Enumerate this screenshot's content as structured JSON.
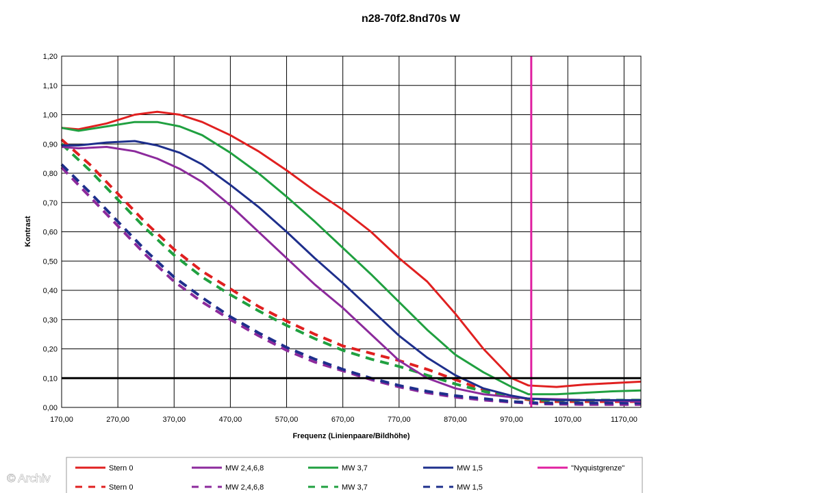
{
  "watermark": "© Archiv",
  "chart_data": {
    "type": "line",
    "title": "n28-70f2.8nd70s W",
    "xlabel": "Frequenz (Linienpaare/Bildhöhe)",
    "ylabel": "Kontrast",
    "xlim": [
      170,
      1200
    ],
    "ylim": [
      0,
      1.2
    ],
    "x_ticks": [
      170,
      270,
      370,
      470,
      570,
      670,
      770,
      870,
      970,
      1070,
      1170
    ],
    "x_tick_labels": [
      "170,00",
      "270,00",
      "370,00",
      "470,00",
      "570,00",
      "670,00",
      "770,00",
      "870,00",
      "970,00",
      "1070,00",
      "1170,00"
    ],
    "y_ticks": [
      0,
      0.1,
      0.2,
      0.3,
      0.4,
      0.5,
      0.6,
      0.7,
      0.8,
      0.9,
      1.0,
      1.1,
      1.2
    ],
    "y_tick_labels": [
      "0,00",
      "0,10",
      "0,20",
      "0,30",
      "0,40",
      "0,50",
      "0,60",
      "0,70",
      "0,80",
      "0,90",
      "1,00",
      "1,10",
      "1,20"
    ],
    "grid": true,
    "legend_position": "bottom",
    "reference_line": {
      "y": 0.1,
      "color": "#000000"
    },
    "series": [
      {
        "name": "Stern 0",
        "color": "#e02020",
        "style": "solid",
        "x": [
          170,
          200,
          250,
          300,
          340,
          380,
          420,
          470,
          520,
          570,
          620,
          670,
          720,
          770,
          820,
          870,
          920,
          970,
          1000,
          1050,
          1100,
          1150,
          1200
        ],
        "y": [
          0.955,
          0.95,
          0.97,
          1.0,
          1.01,
          1.0,
          0.975,
          0.93,
          0.875,
          0.81,
          0.74,
          0.675,
          0.6,
          0.51,
          0.43,
          0.32,
          0.2,
          0.1,
          0.075,
          0.07,
          0.078,
          0.083,
          0.088
        ]
      },
      {
        "name": "MW 2,4,6,8",
        "color": "#8c2a9c",
        "style": "solid",
        "x": [
          170,
          200,
          250,
          300,
          340,
          380,
          420,
          470,
          520,
          570,
          620,
          670,
          720,
          770,
          820,
          870,
          920,
          970,
          1000,
          1050,
          1100,
          1150,
          1200
        ],
        "y": [
          0.89,
          0.885,
          0.89,
          0.875,
          0.85,
          0.815,
          0.77,
          0.69,
          0.6,
          0.51,
          0.42,
          0.34,
          0.25,
          0.16,
          0.1,
          0.065,
          0.045,
          0.035,
          0.03,
          0.028,
          0.025,
          0.023,
          0.02
        ]
      },
      {
        "name": "MW 3,7",
        "color": "#20a040",
        "style": "solid",
        "x": [
          170,
          200,
          250,
          300,
          340,
          380,
          420,
          470,
          520,
          570,
          620,
          670,
          720,
          770,
          820,
          870,
          920,
          970,
          1000,
          1050,
          1100,
          1150,
          1200
        ],
        "y": [
          0.955,
          0.945,
          0.96,
          0.975,
          0.975,
          0.96,
          0.93,
          0.87,
          0.8,
          0.72,
          0.635,
          0.545,
          0.455,
          0.36,
          0.265,
          0.18,
          0.12,
          0.07,
          0.045,
          0.045,
          0.05,
          0.055,
          0.058
        ]
      },
      {
        "name": "MW 1,5",
        "color": "#1e2f8c",
        "style": "solid",
        "x": [
          170,
          200,
          250,
          300,
          340,
          380,
          420,
          470,
          520,
          570,
          620,
          670,
          720,
          770,
          820,
          870,
          920,
          970,
          1000,
          1050,
          1100,
          1150,
          1200
        ],
        "y": [
          0.895,
          0.895,
          0.905,
          0.91,
          0.895,
          0.87,
          0.83,
          0.76,
          0.685,
          0.6,
          0.51,
          0.425,
          0.335,
          0.245,
          0.17,
          0.11,
          0.065,
          0.04,
          0.03,
          0.025,
          0.025,
          0.025,
          0.025
        ]
      },
      {
        "name": "Stern 0",
        "color": "#e02020",
        "style": "dashed",
        "x": [
          170,
          220,
          270,
          320,
          370,
          420,
          470,
          520,
          570,
          620,
          670,
          720,
          770,
          820,
          870,
          920,
          970,
          1020,
          1100,
          1200
        ],
        "y": [
          0.915,
          0.83,
          0.73,
          0.63,
          0.54,
          0.465,
          0.405,
          0.345,
          0.295,
          0.25,
          0.21,
          0.185,
          0.16,
          0.13,
          0.095,
          0.06,
          0.035,
          0.02,
          0.02,
          0.02
        ]
      },
      {
        "name": "MW 2,4,6,8",
        "color": "#8c2a9c",
        "style": "dashed",
        "x": [
          170,
          220,
          270,
          320,
          370,
          420,
          470,
          520,
          570,
          620,
          670,
          720,
          770,
          820,
          870,
          920,
          970,
          1020,
          1100,
          1200
        ],
        "y": [
          0.82,
          0.72,
          0.62,
          0.52,
          0.43,
          0.36,
          0.3,
          0.245,
          0.195,
          0.155,
          0.125,
          0.095,
          0.07,
          0.05,
          0.035,
          0.025,
          0.018,
          0.012,
          0.01,
          0.01
        ]
      },
      {
        "name": "MW 3,7",
        "color": "#20a040",
        "style": "dashed",
        "x": [
          170,
          220,
          270,
          320,
          370,
          420,
          470,
          520,
          570,
          620,
          670,
          720,
          770,
          820,
          870,
          920,
          970,
          1020,
          1100,
          1200
        ],
        "y": [
          0.9,
          0.81,
          0.71,
          0.61,
          0.52,
          0.445,
          0.385,
          0.33,
          0.28,
          0.235,
          0.195,
          0.165,
          0.14,
          0.11,
          0.08,
          0.055,
          0.035,
          0.025,
          0.025,
          0.025
        ]
      },
      {
        "name": "MW 1,5",
        "color": "#1e2f8c",
        "style": "dashed",
        "x": [
          170,
          220,
          270,
          320,
          370,
          420,
          470,
          520,
          570,
          620,
          670,
          720,
          770,
          820,
          870,
          920,
          970,
          1020,
          1100,
          1200
        ],
        "y": [
          0.83,
          0.735,
          0.635,
          0.535,
          0.445,
          0.375,
          0.31,
          0.255,
          0.205,
          0.165,
          0.13,
          0.1,
          0.075,
          0.055,
          0.04,
          0.03,
          0.02,
          0.015,
          0.015,
          0.015
        ]
      },
      {
        "name": "\"Nyquistgrenze\"",
        "color": "#e020a0",
        "style": "solid",
        "x": [
          1005,
          1005
        ],
        "y": [
          0,
          1.2
        ]
      }
    ],
    "legend": [
      {
        "label": "Stern 0",
        "color": "#e02020",
        "style": "solid"
      },
      {
        "label": "MW 2,4,6,8",
        "color": "#8c2a9c",
        "style": "solid"
      },
      {
        "label": "MW 3,7",
        "color": "#20a040",
        "style": "solid"
      },
      {
        "label": "MW 1,5",
        "color": "#1e2f8c",
        "style": "solid"
      },
      {
        "label": "\"Nyquistgrenze\"",
        "color": "#e020a0",
        "style": "solid"
      },
      {
        "label": "Stern 0",
        "color": "#e02020",
        "style": "dashed"
      },
      {
        "label": "MW 2,4,6,8",
        "color": "#8c2a9c",
        "style": "dashed"
      },
      {
        "label": "MW 3,7",
        "color": "#20a040",
        "style": "dashed"
      },
      {
        "label": "MW 1,5",
        "color": "#1e2f8c",
        "style": "dashed"
      }
    ]
  }
}
